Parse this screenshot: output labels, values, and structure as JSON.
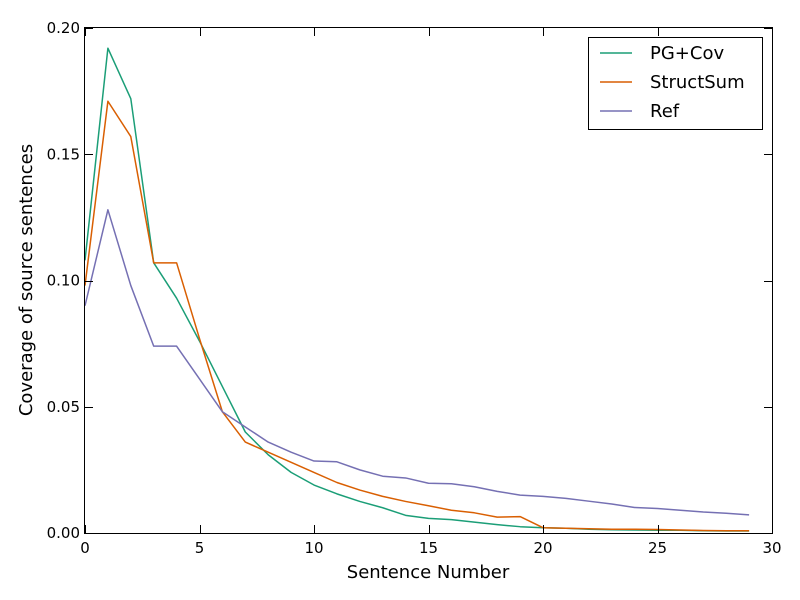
{
  "chart_data": {
    "type": "line",
    "title": "",
    "xlabel": "Sentence Number",
    "ylabel": "Coverage of source sentences",
    "xlim": [
      0,
      30
    ],
    "ylim": [
      0.0,
      0.2
    ],
    "xticks": [
      0,
      5,
      10,
      15,
      20,
      25,
      30
    ],
    "xtick_labels": [
      "0",
      "5",
      "10",
      "15",
      "20",
      "25",
      "30"
    ],
    "yticks": [
      0.0,
      0.05,
      0.1,
      0.15,
      0.2
    ],
    "ytick_labels": [
      "0.00",
      "0.05",
      "0.10",
      "0.15",
      "0.20"
    ],
    "grid": false,
    "legend_position": "top-right",
    "x": [
      0,
      1,
      2,
      3,
      4,
      5,
      6,
      7,
      8,
      9,
      10,
      11,
      12,
      13,
      14,
      15,
      16,
      17,
      18,
      19,
      20,
      21,
      22,
      23,
      24,
      25,
      26,
      27,
      28,
      29
    ],
    "series": [
      {
        "name": "PG+Cov",
        "color": "#1b9e77",
        "values": [
          0.108,
          0.192,
          0.172,
          0.107,
          0.093,
          0.076,
          0.058,
          0.04,
          0.031,
          0.024,
          0.019,
          0.0155,
          0.0125,
          0.01,
          0.007,
          0.0058,
          0.0053,
          0.0043,
          0.0033,
          0.0025,
          0.0021,
          0.0019,
          0.0015,
          0.0013,
          0.0012,
          0.0011,
          0.0011,
          0.0009,
          0.0008,
          0.0008
        ]
      },
      {
        "name": "StructSum",
        "color": "#d95f02",
        "values": [
          0.098,
          0.171,
          0.157,
          0.107,
          0.107,
          0.077,
          0.048,
          0.036,
          0.032,
          0.028,
          0.024,
          0.02,
          0.017,
          0.0145,
          0.0125,
          0.0108,
          0.009,
          0.008,
          0.0063,
          0.0065,
          0.0021,
          0.0019,
          0.0017,
          0.0015,
          0.0015,
          0.0014,
          0.0012,
          0.001,
          0.0009,
          0.0009
        ]
      },
      {
        "name": "Ref",
        "color": "#7570b3",
        "values": [
          0.09,
          0.128,
          0.098,
          0.074,
          0.074,
          0.061,
          0.048,
          0.042,
          0.036,
          0.032,
          0.0285,
          0.0282,
          0.025,
          0.0225,
          0.0218,
          0.0197,
          0.0195,
          0.0183,
          0.0165,
          0.015,
          0.0145,
          0.0137,
          0.0126,
          0.0115,
          0.0101,
          0.0097,
          0.009,
          0.0083,
          0.0078,
          0.0072
        ]
      }
    ]
  }
}
